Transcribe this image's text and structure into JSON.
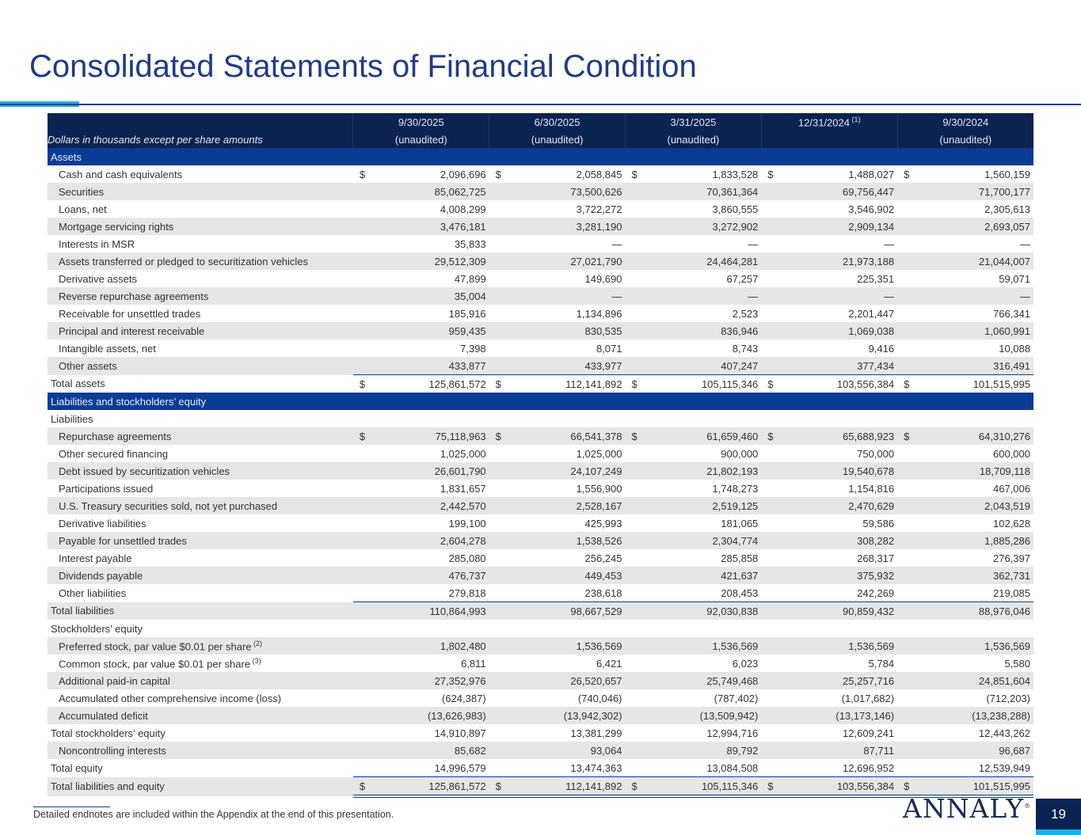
{
  "title": "Consolidated Statements of Financial Condition",
  "header": {
    "label": "Dollars in thousands except per share amounts",
    "columns": [
      {
        "date": "9/30/2025",
        "note": "(unaudited)",
        "sup": ""
      },
      {
        "date": "6/30/2025",
        "note": "(unaudited)",
        "sup": ""
      },
      {
        "date": "3/31/2025",
        "note": "(unaudited)",
        "sup": ""
      },
      {
        "date": "12/31/2024",
        "note": "",
        "sup": "(1)"
      },
      {
        "date": "9/30/2024",
        "note": "(unaudited)",
        "sup": ""
      }
    ]
  },
  "rows": [
    {
      "type": "section",
      "label": "Assets"
    },
    {
      "type": "item",
      "label": "Cash and cash equivalents",
      "dollar": true,
      "values": [
        "2,096,696",
        "2,058,845",
        "1,833,528",
        "1,488,027",
        "1,560,159"
      ]
    },
    {
      "type": "item",
      "label": "Securities",
      "values": [
        "85,062,725",
        "73,500,626",
        "70,361,364",
        "69,756,447",
        "71,700,177"
      ]
    },
    {
      "type": "item",
      "label": "Loans, net",
      "values": [
        "4,008,299",
        "3,722,272",
        "3,860,555",
        "3,546,902",
        "2,305,613"
      ]
    },
    {
      "type": "item",
      "label": "Mortgage servicing rights",
      "values": [
        "3,476,181",
        "3,281,190",
        "3,272,902",
        "2,909,134",
        "2,693,057"
      ]
    },
    {
      "type": "item",
      "label": "Interests in MSR",
      "values": [
        "35,833",
        "—",
        "—",
        "—",
        "—"
      ]
    },
    {
      "type": "item",
      "label": "Assets transferred or pledged to securitization vehicles",
      "values": [
        "29,512,309",
        "27,021,790",
        "24,464,281",
        "21,973,188",
        "21,044,007"
      ]
    },
    {
      "type": "item",
      "label": "Derivative assets",
      "values": [
        "47,899",
        "149,690",
        "67,257",
        "225,351",
        "59,071"
      ]
    },
    {
      "type": "item",
      "label": "Reverse repurchase agreements",
      "values": [
        "35,004",
        "—",
        "—",
        "—",
        "—"
      ]
    },
    {
      "type": "item",
      "label": "Receivable for unsettled trades",
      "values": [
        "185,916",
        "1,134,896",
        "2,523",
        "2,201,447",
        "766,341"
      ]
    },
    {
      "type": "item",
      "label": "Principal and interest receivable",
      "values": [
        "959,435",
        "830,535",
        "836,946",
        "1,069,038",
        "1,060,991"
      ]
    },
    {
      "type": "item",
      "label": "Intangible assets, net",
      "values": [
        "7,398",
        "8,071",
        "8,743",
        "9,416",
        "10,088"
      ]
    },
    {
      "type": "item",
      "label": "Other assets",
      "values": [
        "433,877",
        "433,977",
        "407,247",
        "377,434",
        "316,491"
      ]
    },
    {
      "type": "total",
      "label": "Total assets",
      "dollar": true,
      "values": [
        "125,861,572",
        "112,141,892",
        "105,115,346",
        "103,556,384",
        "101,515,995"
      ]
    },
    {
      "type": "section",
      "label": "Liabilities and stockholders’ equity"
    },
    {
      "type": "sub",
      "label": "Liabilities"
    },
    {
      "type": "item",
      "label": "Repurchase agreements",
      "dollar": true,
      "values": [
        "75,118,963",
        "66,541,378",
        "61,659,460",
        "65,688,923",
        "64,310,276"
      ]
    },
    {
      "type": "item",
      "label": "Other secured financing",
      "values": [
        "1,025,000",
        "1,025,000",
        "900,000",
        "750,000",
        "600,000"
      ]
    },
    {
      "type": "item",
      "label": "Debt issued by securitization vehicles",
      "values": [
        "26,601,790",
        "24,107,249",
        "21,802,193",
        "19,540,678",
        "18,709,118"
      ]
    },
    {
      "type": "item",
      "label": "Participations issued",
      "values": [
        "1,831,657",
        "1,556,900",
        "1,748,273",
        "1,154,816",
        "467,006"
      ]
    },
    {
      "type": "item",
      "label": "U.S. Treasury securities sold, not yet purchased",
      "values": [
        "2,442,570",
        "2,528,167",
        "2,519,125",
        "2,470,629",
        "2,043,519"
      ]
    },
    {
      "type": "item",
      "label": "Derivative liabilities",
      "values": [
        "199,100",
        "425,993",
        "181,065",
        "59,586",
        "102,628"
      ]
    },
    {
      "type": "item",
      "label": "Payable for unsettled trades",
      "values": [
        "2,604,278",
        "1,538,526",
        "2,304,774",
        "308,282",
        "1,885,286"
      ]
    },
    {
      "type": "item",
      "label": "Interest payable",
      "values": [
        "285,080",
        "256,245",
        "285,858",
        "268,317",
        "276,397"
      ]
    },
    {
      "type": "item",
      "label": "Dividends payable",
      "values": [
        "476,737",
        "449,453",
        "421,637",
        "375,932",
        "362,731"
      ]
    },
    {
      "type": "item",
      "label": "Other liabilities",
      "values": [
        "279,818",
        "238,618",
        "208,453",
        "242,269",
        "219,085"
      ]
    },
    {
      "type": "total",
      "label": "Total liabilities",
      "values": [
        "110,864,993",
        "98,667,529",
        "92,030,838",
        "90,859,432",
        "88,976,046"
      ]
    },
    {
      "type": "sub",
      "label": "Stockholders’ equity"
    },
    {
      "type": "item",
      "label": "Preferred stock, par value $0.01 per share",
      "sup": "(2)",
      "values": [
        "1,802,480",
        "1,536,569",
        "1,536,569",
        "1,536,569",
        "1,536,569"
      ]
    },
    {
      "type": "item",
      "label": "Common stock, par value $0.01 per share",
      "sup": "(3)",
      "values": [
        "6,811",
        "6,421",
        "6,023",
        "5,784",
        "5,580"
      ]
    },
    {
      "type": "item",
      "label": "Additional paid-in capital",
      "values": [
        "27,352,976",
        "26,520,657",
        "25,749,468",
        "25,257,716",
        "24,851,604"
      ]
    },
    {
      "type": "item",
      "label": "Accumulated other comprehensive income (loss)",
      "values": [
        "(624,387)",
        "(740,046)",
        "(787,402)",
        "(1,017,682)",
        "(712,203)"
      ]
    },
    {
      "type": "item",
      "label": "Accumulated deficit",
      "values": [
        "(13,626,983)",
        "(13,942,302)",
        "(13,509,942)",
        "(13,173,146)",
        "(13,238,288)"
      ]
    },
    {
      "type": "sub",
      "label": "Total stockholders’ equity",
      "values": [
        "14,910,897",
        "13,381,299",
        "12,994,716",
        "12,609,241",
        "12,443,262"
      ]
    },
    {
      "type": "item",
      "label": "Noncontrolling interests",
      "values": [
        "85,682",
        "93,064",
        "89,792",
        "87,711",
        "96,687"
      ]
    },
    {
      "type": "sub",
      "label": "Total equity",
      "values": [
        "14,996,579",
        "13,474,363",
        "13,084,508",
        "12,696,952",
        "12,539,949"
      ]
    },
    {
      "type": "final",
      "label": "Total liabilities and equity",
      "dollar": true,
      "values": [
        "125,861,572",
        "112,141,892",
        "105,115,346",
        "103,556,384",
        "101,515,995"
      ]
    }
  ],
  "dollar_sign": "$",
  "footnote": "Detailed endnotes are included within the Appendix at the end of this presentation.",
  "logo": "ANNALY",
  "page_number": "19"
}
